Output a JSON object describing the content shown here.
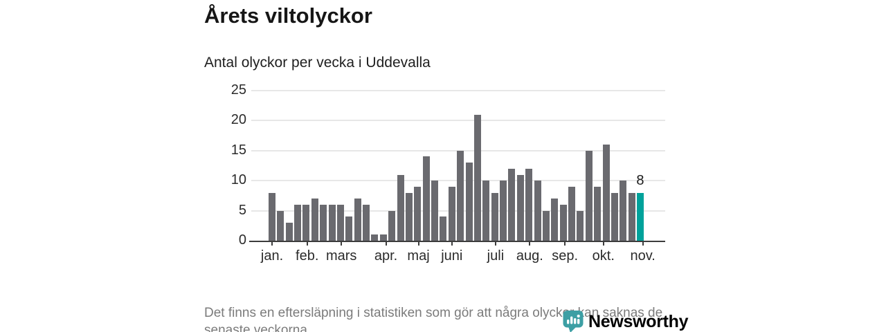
{
  "header": {
    "title": "Årets viltolyckor",
    "subtitle": "Antal olyckor per vecka i Uddevalla"
  },
  "chart_data": {
    "type": "bar",
    "x_unit": "vecka (week of year)",
    "values": [
      8,
      5,
      3,
      6,
      6,
      7,
      6,
      6,
      6,
      4,
      7,
      6,
      1,
      1,
      5,
      11,
      8,
      9,
      14,
      10,
      4,
      9,
      15,
      13,
      21,
      10,
      8,
      10,
      12,
      11,
      12,
      10,
      5,
      7,
      6,
      9,
      5,
      15,
      9,
      16,
      8,
      10,
      8,
      8
    ],
    "highlight_index": 43,
    "highlight_value_label": "8",
    "months": [
      {
        "label": "jan.",
        "week": 1.0
      },
      {
        "label": "feb.",
        "week": 5.1
      },
      {
        "label": "mars",
        "week": 9.1
      },
      {
        "label": "apr.",
        "week": 14.3
      },
      {
        "label": "maj",
        "week": 18.1
      },
      {
        "label": "juni",
        "week": 22.0
      },
      {
        "label": "juli",
        "week": 27.1
      },
      {
        "label": "aug.",
        "week": 31.1
      },
      {
        "label": "sep.",
        "week": 35.2
      },
      {
        "label": "okt.",
        "week": 39.7
      },
      {
        "label": "nov.",
        "week": 44.3
      }
    ],
    "yticks": [
      0,
      5,
      10,
      15,
      20,
      25
    ],
    "ylim": [
      0,
      25
    ],
    "grid": true,
    "legend": "none",
    "colors": {
      "bar": "#6a6a6f",
      "highlight": "#00a29b",
      "gridline": "#e7e7e7",
      "axis": "#3c3c3c"
    }
  },
  "footer": {
    "line1": "Det finns en eftersläpning i statistiken som gör att några olyckor kan saknas de",
    "line2": "senaste veckorna."
  },
  "logo": {
    "wordmark": "Newsworthy",
    "color": "#3d9fa4",
    "icon": "newsworthy-pin-icon"
  }
}
